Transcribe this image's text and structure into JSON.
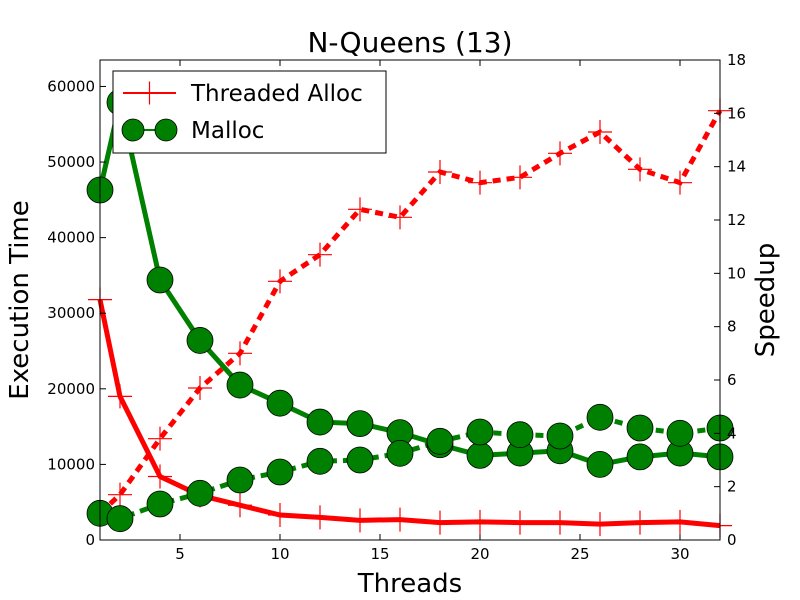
{
  "chart_data": {
    "type": "line",
    "title": "N-Queens (13)",
    "xlabel": "Threads",
    "ylabel": "Execution Time",
    "y2label": "Speedup",
    "xlim": [
      1,
      32
    ],
    "ylim": [
      0,
      63500
    ],
    "y2lim": [
      0,
      18
    ],
    "xticks": [
      5,
      10,
      15,
      20,
      25,
      30
    ],
    "yticks": [
      0,
      10000,
      20000,
      30000,
      40000,
      50000,
      60000
    ],
    "y2ticks": [
      0,
      2,
      4,
      6,
      8,
      10,
      12,
      14,
      16,
      18
    ],
    "legend": "top-left",
    "series": [
      {
        "name": "Threaded Alloc",
        "color": "#ff0000",
        "marker": "plus",
        "x": [
          1,
          2,
          4,
          6,
          8,
          10,
          12,
          14,
          16,
          18,
          20,
          22,
          24,
          26,
          28,
          30,
          32
        ],
        "time": [
          31800,
          19000,
          8400,
          5900,
          4600,
          3300,
          3000,
          2600,
          2700,
          2300,
          2400,
          2300,
          2300,
          2100,
          2300,
          2400,
          1900
        ],
        "speedup": [
          1.0,
          1.7,
          3.8,
          5.7,
          7.0,
          9.7,
          10.7,
          12.4,
          12.1,
          13.8,
          13.4,
          13.6,
          14.5,
          15.3,
          13.9,
          13.4,
          16.1
        ]
      },
      {
        "name": "Malloc",
        "color": "#008000",
        "marker": "circle",
        "x": [
          1,
          2,
          4,
          6,
          8,
          10,
          12,
          14,
          16,
          18,
          20,
          22,
          24,
          26,
          28,
          30,
          32
        ],
        "time": [
          46300,
          57900,
          34400,
          26400,
          20500,
          18100,
          15600,
          15400,
          14200,
          12600,
          11200,
          11500,
          11800,
          10000,
          11000,
          11500,
          11000
        ],
        "speedup": [
          1.0,
          0.8,
          1.35,
          1.75,
          2.25,
          2.55,
          2.95,
          3.0,
          3.25,
          3.7,
          4.05,
          3.95,
          3.9,
          4.6,
          4.2,
          4.0,
          4.2
        ]
      }
    ]
  }
}
